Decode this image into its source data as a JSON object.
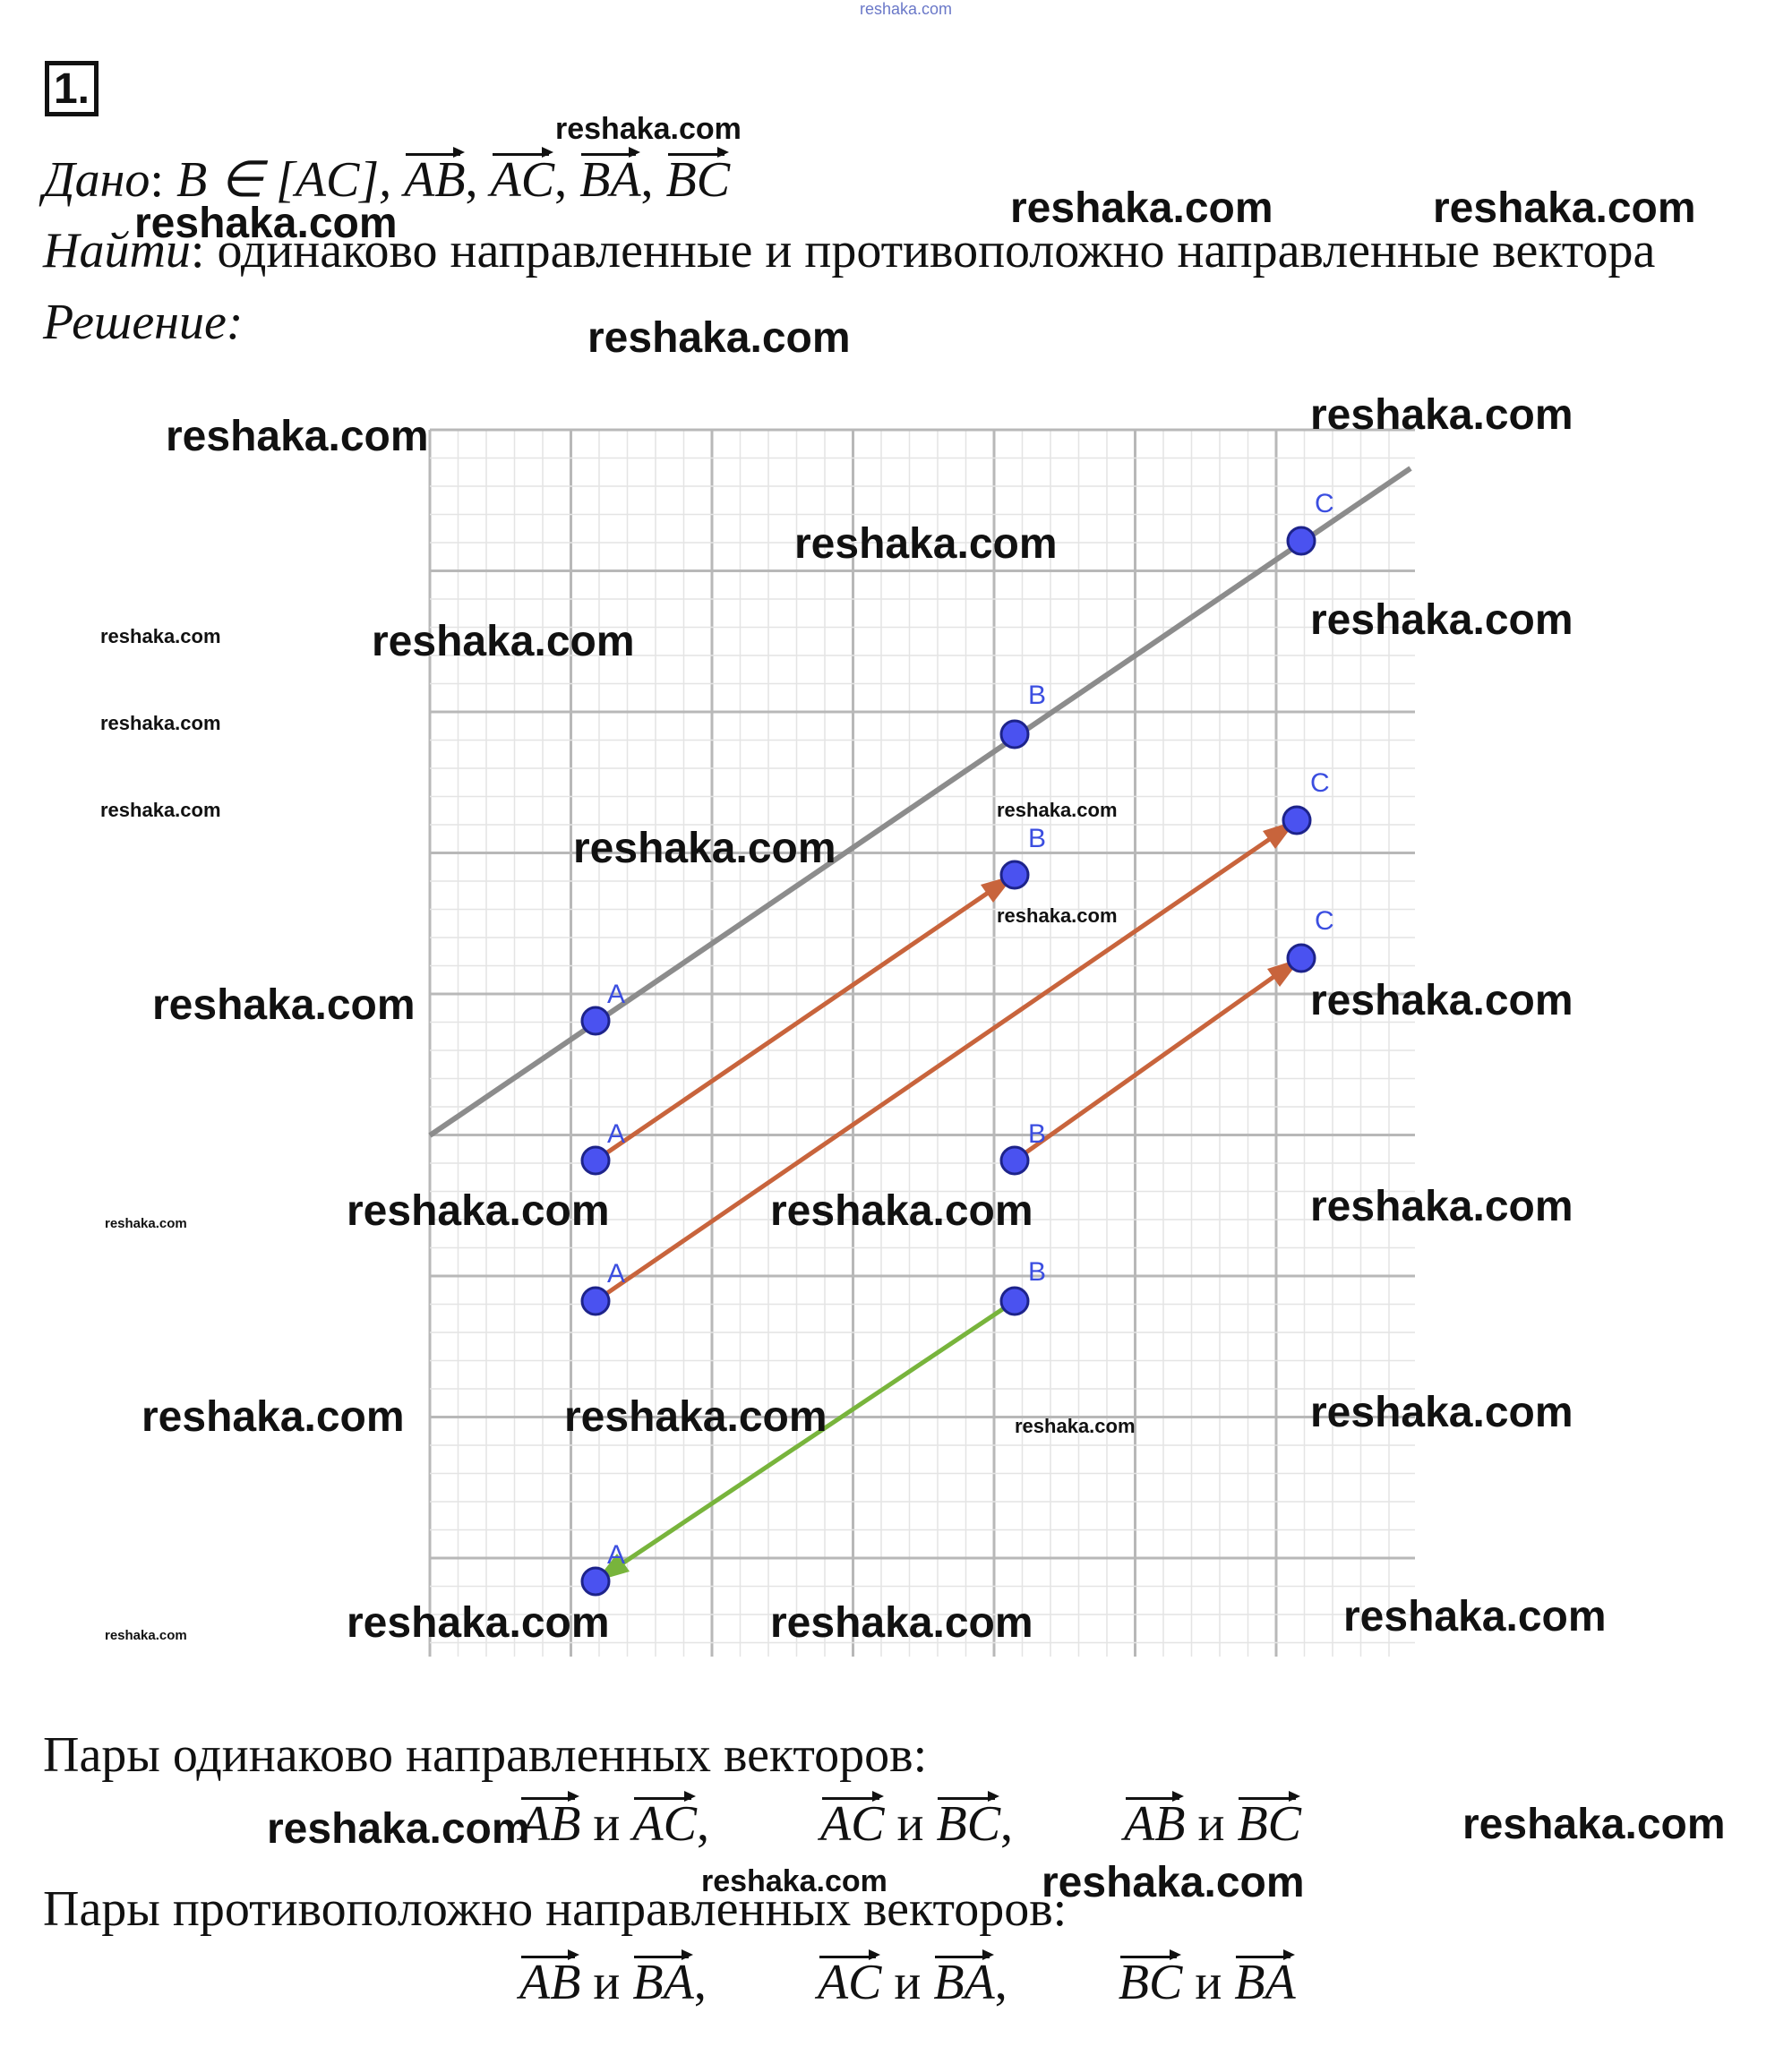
{
  "problem_number": "1.",
  "given": {
    "label": "Дано",
    "condition": "B ∈ [AC],",
    "vectors": [
      "AB",
      "AC",
      "BA",
      "BC"
    ]
  },
  "find": {
    "label": "Найти",
    "text": ": одинаково направленные и противоположно направленные вектора"
  },
  "solution_label": "Решение:",
  "points": {
    "a": "A",
    "b": "B",
    "c": "C"
  },
  "same_direction": {
    "heading": "Пары одинаково направленных векторов:",
    "pairs": [
      {
        "v1": "AB",
        "and": "и",
        "v2": "AC",
        "sep": ","
      },
      {
        "v1": "AC",
        "and": "и",
        "v2": "BC",
        "sep": ","
      },
      {
        "v1": "AB",
        "and": "и",
        "v2": "BC",
        "sep": ""
      }
    ]
  },
  "opposite_direction": {
    "heading": "Пары противоположно направленных векторов:",
    "pairs": [
      {
        "v1": "AB",
        "and": "и",
        "v2": "BA",
        "sep": ","
      },
      {
        "v1": "AC",
        "and": "и",
        "v2": "BA",
        "sep": ","
      },
      {
        "v1": "BC",
        "and": "и",
        "v2": "BA",
        "sep": ""
      }
    ]
  },
  "watermark": "reshaka.com",
  "colors": {
    "line": "#8c8c8c",
    "vector_same": "#c8643c",
    "vector_opposite": "#78b43c",
    "point": "#4a52f0"
  }
}
